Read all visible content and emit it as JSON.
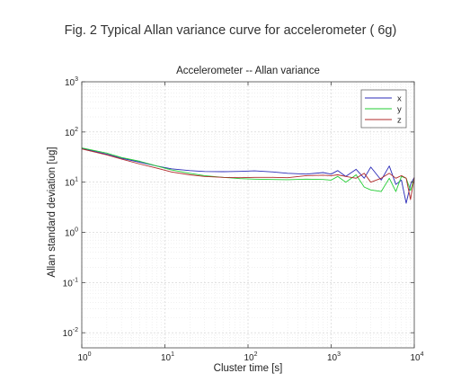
{
  "caption": "Fig. 2 Typical Allan variance curve for accelerometer ( 6g)",
  "chart_data": {
    "type": "line",
    "title": "Accelerometer -- Allan variance",
    "xlabel": "Cluster time [s]",
    "ylabel": "Allan standard deviation [ug]",
    "xscale": "log",
    "yscale": "log",
    "xlim": [
      1,
      10000
    ],
    "ylim": [
      0.005,
      1000
    ],
    "x_ticks": [
      {
        "base": "10",
        "exp": "0",
        "value": 1
      },
      {
        "base": "10",
        "exp": "1",
        "value": 10
      },
      {
        "base": "10",
        "exp": "2",
        "value": 100
      },
      {
        "base": "10",
        "exp": "3",
        "value": 1000
      },
      {
        "base": "10",
        "exp": "4",
        "value": 10000
      }
    ],
    "y_ticks": [
      {
        "base": "10",
        "exp": "-2",
        "value": 0.01
      },
      {
        "base": "10",
        "exp": "-1",
        "value": 0.1
      },
      {
        "base": "10",
        "exp": "0",
        "value": 1
      },
      {
        "base": "10",
        "exp": "1",
        "value": 10
      },
      {
        "base": "10",
        "exp": "2",
        "value": 100
      },
      {
        "base": "10",
        "exp": "3",
        "value": 1000
      }
    ],
    "grid": true,
    "legend_position": "top-right",
    "series": [
      {
        "name": "x",
        "color": "#2b2bb8",
        "x": [
          1,
          2,
          3,
          5,
          8,
          12,
          20,
          30,
          50,
          80,
          120,
          200,
          300,
          500,
          800,
          1000,
          1200,
          1500,
          2000,
          2500,
          3000,
          4000,
          5000,
          6000,
          7000,
          8000,
          9000,
          10000
        ],
        "y": [
          47,
          36,
          30,
          25,
          21,
          18.5,
          17,
          16.3,
          16.2,
          16.4,
          16.8,
          16,
          15,
          14.5,
          15.5,
          14.5,
          17,
          13,
          18,
          12,
          20,
          11,
          21,
          9,
          11,
          3.8,
          9,
          12.5
        ]
      },
      {
        "name": "y",
        "color": "#22cc33",
        "x": [
          1,
          2,
          3,
          5,
          8,
          12,
          20,
          30,
          50,
          80,
          120,
          200,
          300,
          500,
          800,
          1000,
          1200,
          1500,
          2000,
          2500,
          3000,
          4000,
          5000,
          6000,
          7000,
          8000,
          9000,
          10000
        ],
        "y": [
          48,
          38,
          31,
          26,
          21,
          17.5,
          15,
          13.5,
          12.5,
          11.8,
          11.5,
          11.3,
          11.2,
          11.5,
          11.3,
          11,
          13,
          10,
          14,
          8,
          7,
          6.5,
          12,
          6.5,
          13,
          12,
          6.8,
          12
        ]
      },
      {
        "name": "z",
        "color": "#b02a2a",
        "x": [
          1,
          2,
          3,
          5,
          8,
          12,
          20,
          30,
          50,
          80,
          120,
          200,
          300,
          500,
          800,
          1000,
          1200,
          1500,
          2000,
          2500,
          3000,
          4000,
          5000,
          6000,
          7000,
          8000,
          9000,
          10000
        ],
        "y": [
          46,
          35,
          29,
          23,
          19,
          16,
          14,
          13,
          12.5,
          12.3,
          12.5,
          12.5,
          12.3,
          13.5,
          13.8,
          13.5,
          14,
          13,
          12,
          15,
          10,
          12,
          15,
          12,
          13.5,
          12,
          4.5,
          12.5
        ]
      }
    ]
  }
}
